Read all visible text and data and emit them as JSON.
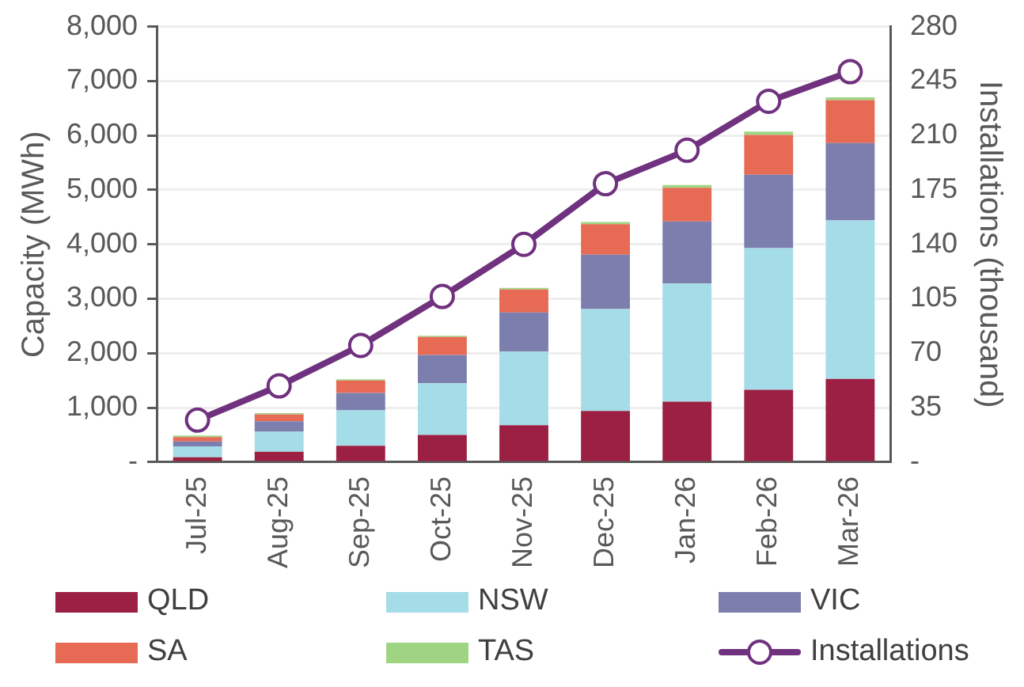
{
  "chart_data": {
    "type": "bar",
    "stacked": true,
    "ylabel": "Capacity (MWh)",
    "y2label": "Installations (thousand)",
    "categories": [
      "Jul-25",
      "Aug-25",
      "Sep-25",
      "Oct-25",
      "Nov-25",
      "Dec-25",
      "Jan-26",
      "Feb-26",
      "Mar-26"
    ],
    "series": [
      {
        "name": "QLD",
        "color": "#9b2043",
        "values": [
          90,
          190,
          300,
          500,
          680,
          940,
          1110,
          1330,
          1530
        ]
      },
      {
        "name": "NSW",
        "color": "#a4dce8",
        "values": [
          200,
          370,
          650,
          950,
          1350,
          1870,
          2170,
          2600,
          2910
        ]
      },
      {
        "name": "VIC",
        "color": "#7c7fad",
        "values": [
          90,
          190,
          320,
          520,
          720,
          1000,
          1140,
          1350,
          1420
        ]
      },
      {
        "name": "SA",
        "color": "#e66a54",
        "values": [
          80,
          130,
          230,
          330,
          420,
          560,
          620,
          730,
          790
        ]
      },
      {
        "name": "TAS",
        "color": "#9fd582",
        "values": [
          30,
          20,
          20,
          20,
          30,
          40,
          50,
          60,
          50
        ]
      },
      {
        "name": "Installations",
        "type": "line",
        "axis": "y2",
        "color": "#70317e",
        "marker": "circle",
        "values": [
          27,
          49,
          75,
          106.5,
          140,
          179,
          200.5,
          232,
          251
        ]
      }
    ],
    "ylim": [
      0,
      8000
    ],
    "yticks": [
      {
        "value": 0,
        "label": "-"
      },
      {
        "value": 1000,
        "label": "1,000"
      },
      {
        "value": 2000,
        "label": "2,000"
      },
      {
        "value": 3000,
        "label": "3,000"
      },
      {
        "value": 4000,
        "label": "4,000"
      },
      {
        "value": 5000,
        "label": "5,000"
      },
      {
        "value": 6000,
        "label": "6,000"
      },
      {
        "value": 7000,
        "label": "7,000"
      },
      {
        "value": 8000,
        "label": "8,000"
      }
    ],
    "y2lim": [
      0,
      280
    ],
    "y2ticks": [
      {
        "value": 0,
        "label": "-"
      },
      35,
      70,
      105,
      140,
      175,
      210,
      245,
      280
    ],
    "grid": "y",
    "legend": "bottom"
  }
}
